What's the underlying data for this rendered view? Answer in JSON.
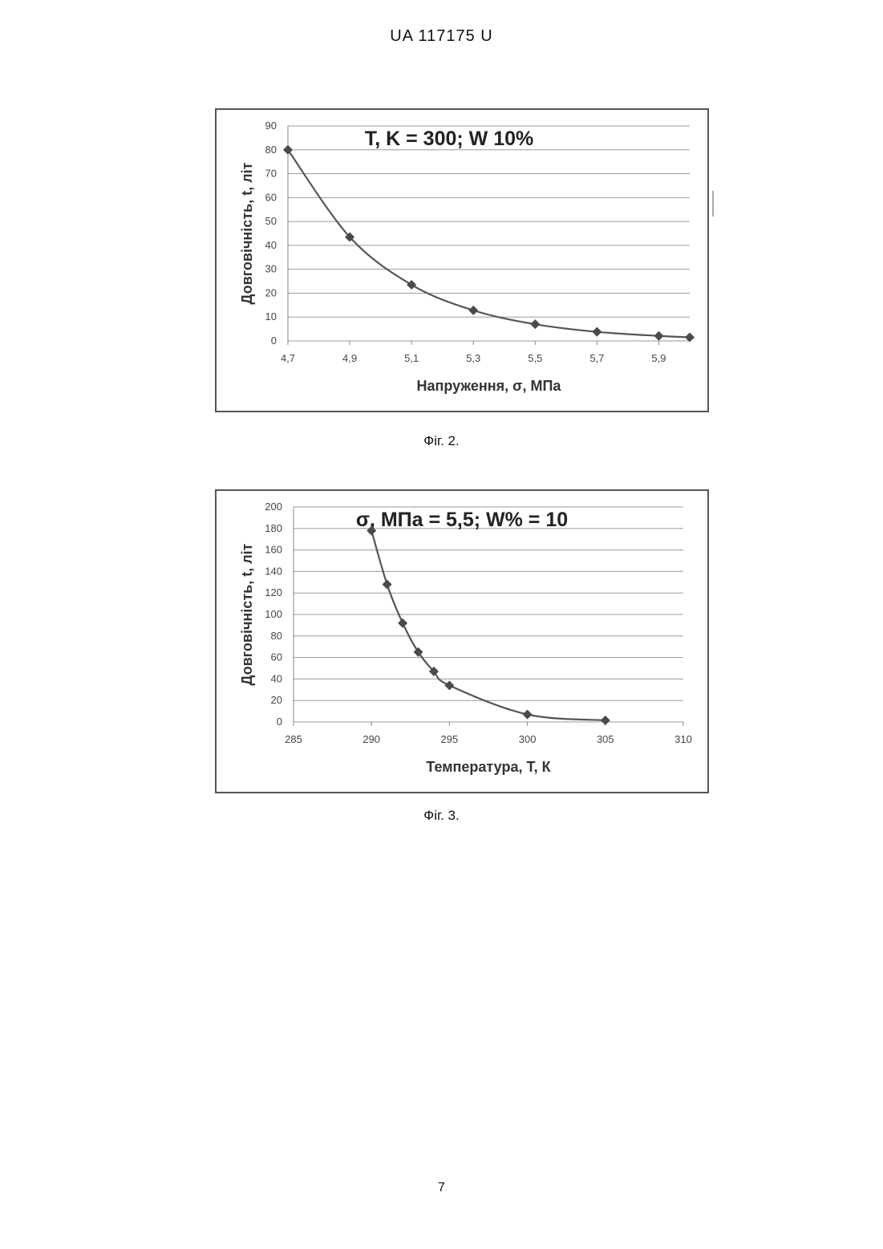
{
  "header": {
    "document_number": "UA   117175   U"
  },
  "page_number": "7",
  "figures": [
    {
      "caption": "Фіг. 2."
    },
    {
      "caption": "Фіг. 3."
    }
  ],
  "chart_data": [
    {
      "type": "line",
      "title": "T, K = 300; W 10%",
      "xlabel": "Напруження, σ, МПа",
      "ylabel": "Довговічність, t, літ",
      "xlim": [
        4.7,
        6.0
      ],
      "ylim": [
        0,
        90
      ],
      "x_ticks": [
        "4,7",
        "4,9",
        "5,1",
        "5,3",
        "5,5",
        "5,7",
        "5,9"
      ],
      "y_ticks": [
        "0",
        "10",
        "20",
        "30",
        "40",
        "50",
        "60",
        "70",
        "80",
        "90"
      ],
      "grid": true,
      "marker": "diamond",
      "series": [
        {
          "x": [
            4.7,
            4.9,
            5.1,
            5.3,
            5.5,
            5.7,
            5.9,
            6.0
          ],
          "y": [
            80,
            43.5,
            23.5,
            12.8,
            7,
            3.8,
            2.1,
            1.5
          ]
        }
      ]
    },
    {
      "type": "line",
      "title": "σ, МПа = 5,5; W% = 10",
      "xlabel": "Температура, Т, К",
      "ylabel": "Довговічність, t, літ",
      "xlim": [
        285,
        310
      ],
      "ylim": [
        0,
        200
      ],
      "x_ticks": [
        "285",
        "290",
        "295",
        "300",
        "305",
        "310"
      ],
      "y_ticks": [
        "0",
        "20",
        "40",
        "60",
        "80",
        "100",
        "120",
        "140",
        "160",
        "180",
        "200"
      ],
      "grid": true,
      "marker": "diamond",
      "series": [
        {
          "x": [
            290,
            291,
            292,
            293,
            294,
            295,
            300,
            305
          ],
          "y": [
            178,
            128,
            92,
            65,
            47,
            34,
            7,
            1.5
          ]
        }
      ]
    }
  ]
}
